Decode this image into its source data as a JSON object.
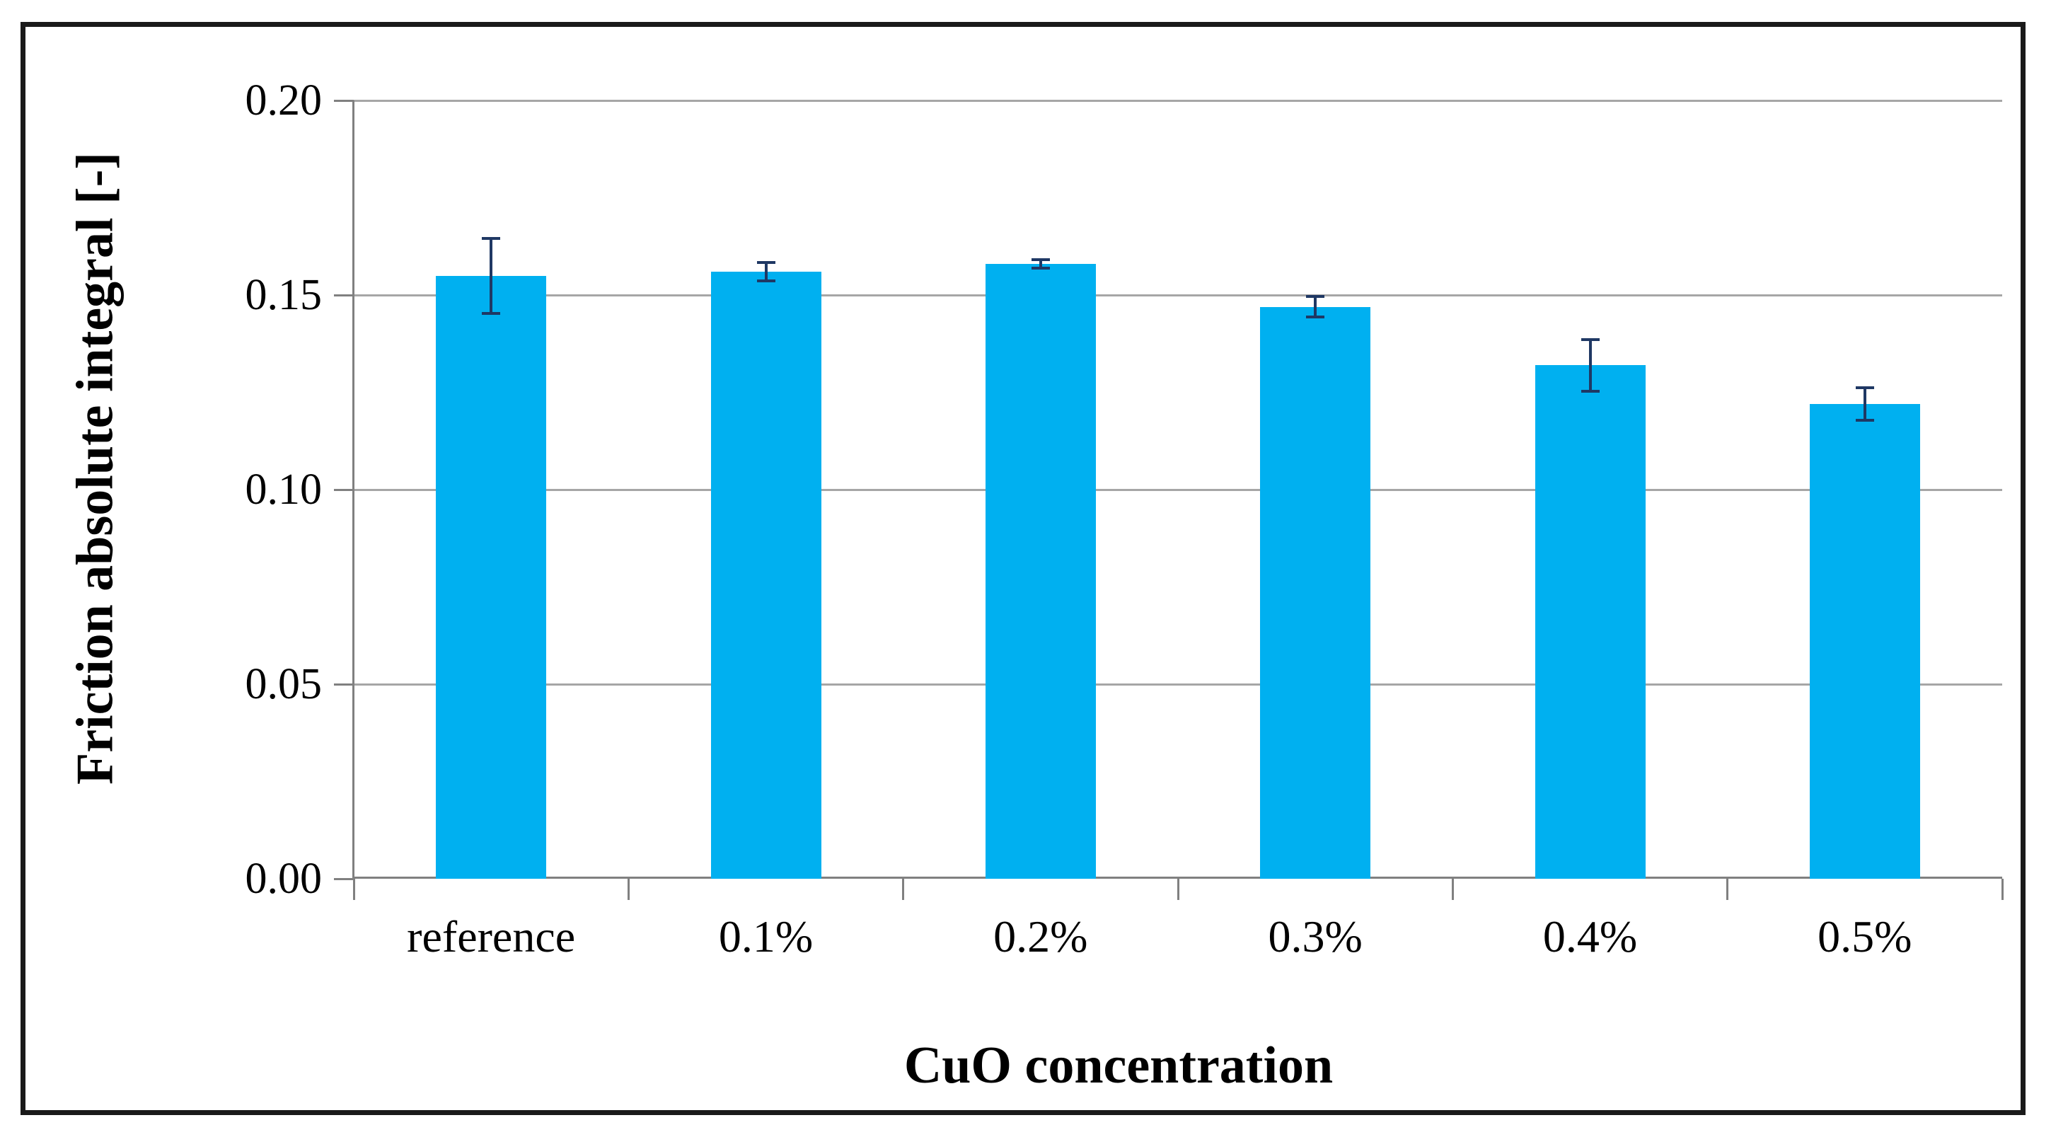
{
  "chart_data": {
    "type": "bar",
    "title": "",
    "xlabel": "CuO concentration",
    "ylabel": "Friction absolute integral [-]",
    "categories": [
      "reference",
      "0.1%",
      "0.2%",
      "0.3%",
      "0.4%",
      "0.5%"
    ],
    "values": [
      0.155,
      0.156,
      0.158,
      0.147,
      0.132,
      0.122
    ],
    "error_bars": [
      0.01,
      0.0027,
      0.0015,
      0.003,
      0.007,
      0.0045
    ],
    "ylim": [
      0.0,
      0.2
    ],
    "yticks": [
      0.0,
      0.05,
      0.1,
      0.15,
      0.2
    ],
    "ytick_labels": [
      "0.00",
      "0.05",
      "0.10",
      "0.15",
      "0.20"
    ],
    "grid": true,
    "legend_position": "none",
    "bar_color": "#00B0F0",
    "error_bar_color": "#1F3864",
    "gridline_color": "#A6A6A6",
    "axis_color": "#808080",
    "text_color": "#000000",
    "frame_border_color": "#1A1A1A"
  }
}
